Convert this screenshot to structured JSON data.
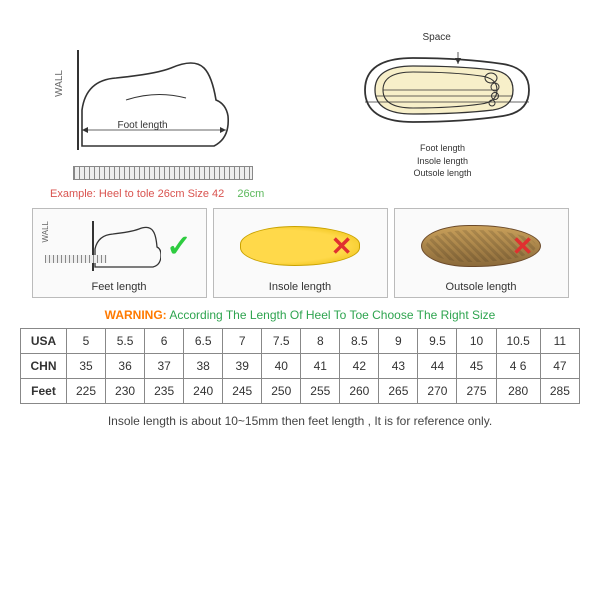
{
  "top_left": {
    "wall": "WALL",
    "foot_length": "Foot length"
  },
  "top_right": {
    "space": "Space",
    "foot_length": "Foot length",
    "insole_length": "Insole length",
    "outsole_length": "Outsole length"
  },
  "example": {
    "label": "Example: Heel to tole 26cm Size 42",
    "value": "26cm"
  },
  "tri": {
    "feet": "Feet length",
    "insole": "Insole length",
    "outsole": "Outsole length",
    "wall": "WALL"
  },
  "warning": {
    "label": "WARNING:",
    "text": "According The Length Of Heel To Toe Choose The Right Size"
  },
  "table": {
    "headers": [
      "USA",
      "CHN",
      "Feet"
    ],
    "rows": [
      [
        "5",
        "5.5",
        "6",
        "6.5",
        "7",
        "7.5",
        "8",
        "8.5",
        "9",
        "9.5",
        "10",
        "10.5",
        "11"
      ],
      [
        "35",
        "36",
        "37",
        "38",
        "39",
        "40",
        "41",
        "42",
        "43",
        "44",
        "45",
        "4 6",
        "47"
      ],
      [
        "225",
        "230",
        "235",
        "240",
        "245",
        "250",
        "255",
        "260",
        "265",
        "270",
        "275",
        "280",
        "285"
      ]
    ],
    "col_count": 13
  },
  "footnote": "Insole length is about 10~15mm then feet length , It is for reference only.",
  "colors": {
    "check": "#2ecc40",
    "cross": "#e03030",
    "warn_label": "#ff7a00",
    "warn_text": "#2ea44f",
    "example_red": "#d9534f",
    "example_green": "#5cb85c",
    "border": "#888888",
    "insole_fill": "#ffd94a",
    "outsole_fill": "#c9a05a"
  }
}
